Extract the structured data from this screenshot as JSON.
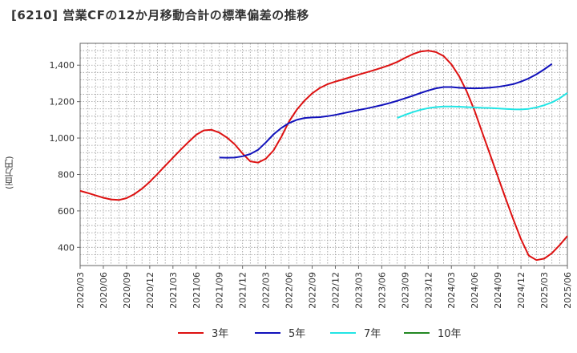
{
  "chart_data": {
    "type": "line",
    "title": "[6210]  営業CFの12か月移動合計の標準偏差の推移",
    "ylabel": "(百万円)",
    "xlabel": "",
    "ylim": [
      300,
      1520
    ],
    "yticks": [
      400,
      600,
      800,
      1000,
      1200,
      1400
    ],
    "ytick_labels": [
      "400",
      "600",
      "800",
      "1,000",
      "1,200",
      "1,400"
    ],
    "xticks": [
      "2020/03",
      "2020/06",
      "2020/09",
      "2020/12",
      "2021/03",
      "2021/06",
      "2021/09",
      "2021/12",
      "2022/03",
      "2022/06",
      "2022/09",
      "2022/12",
      "2023/03",
      "2023/06",
      "2023/09",
      "2023/12",
      "2024/03",
      "2024/06",
      "2024/09",
      "2024/12",
      "2025/03",
      "2025/06"
    ],
    "grid": true,
    "legend_position": "bottom",
    "series": [
      {
        "name": "3年",
        "color": "#dd1111",
        "start": "2020/03",
        "values": [
          710,
          698,
          685,
          672,
          663,
          660,
          670,
          692,
          722,
          760,
          803,
          848,
          892,
          936,
          978,
          1018,
          1042,
          1045,
          1030,
          1002,
          965,
          915,
          872,
          865,
          886,
          932,
          1005,
          1090,
          1155,
          1205,
          1245,
          1275,
          1296,
          1310,
          1322,
          1335,
          1348,
          1360,
          1373,
          1386,
          1400,
          1418,
          1440,
          1460,
          1475,
          1480,
          1472,
          1450,
          1405,
          1340,
          1255,
          1150,
          1030,
          910,
          790,
          670,
          555,
          445,
          355,
          330,
          338,
          368,
          412,
          462
        ]
      },
      {
        "name": "5年",
        "color": "#1111bb",
        "start": "2021/09",
        "values": [
          893,
          892,
          893,
          900,
          912,
          935,
          975,
          1020,
          1055,
          1082,
          1100,
          1110,
          1113,
          1115,
          1120,
          1127,
          1136,
          1145,
          1154,
          1162,
          1171,
          1181,
          1192,
          1204,
          1218,
          1232,
          1247,
          1261,
          1273,
          1280,
          1280,
          1276,
          1274,
          1273,
          1274,
          1277,
          1281,
          1288,
          1296,
          1310,
          1327,
          1350,
          1377,
          1407
        ]
      },
      {
        "name": "7年",
        "color": "#22e5e5",
        "start": "2023/08",
        "values": [
          1110,
          1127,
          1142,
          1155,
          1164,
          1170,
          1173,
          1173,
          1172,
          1170,
          1168,
          1166,
          1165,
          1163,
          1160,
          1158,
          1157,
          1160,
          1168,
          1180,
          1196,
          1218,
          1248
        ]
      },
      {
        "name": "10年",
        "color": "#228822",
        "start": "2025/03",
        "values": []
      }
    ]
  }
}
